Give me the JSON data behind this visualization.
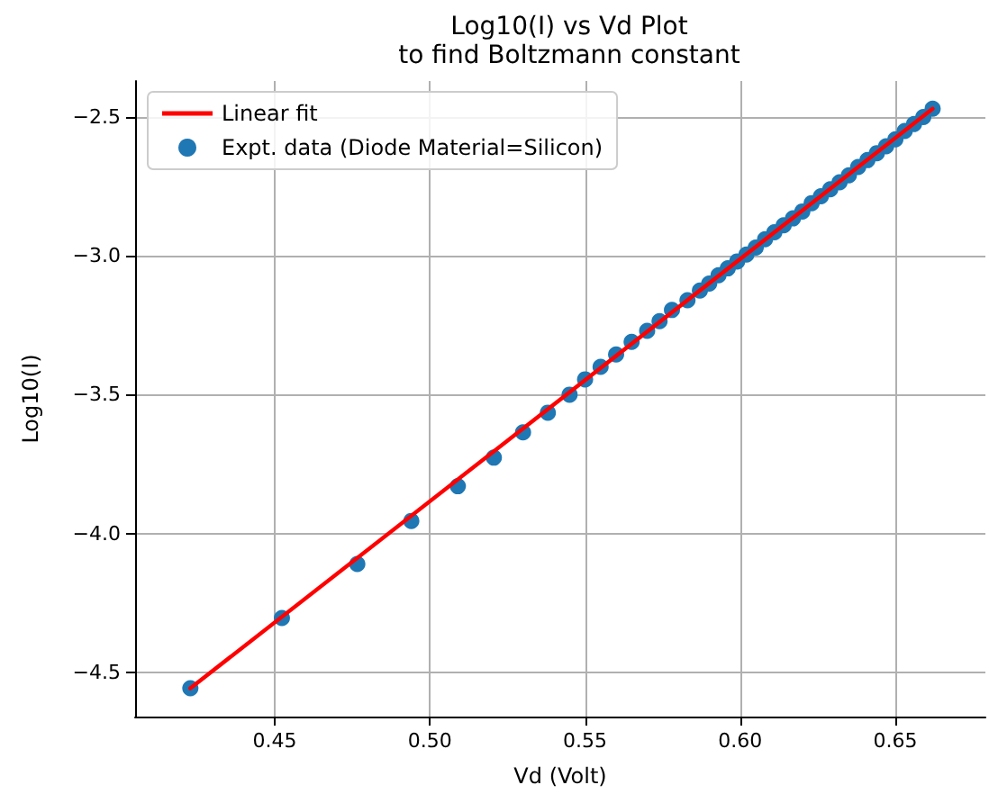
{
  "chart_data": {
    "type": "scatter",
    "title": "Log10(I) vs Vd Plot",
    "subtitle": "to find Boltzmann constant",
    "xlabel": "Vd (Volt)",
    "ylabel": "Log10(I)",
    "x": [
      0.4228,
      0.4523,
      0.4766,
      0.494,
      0.509,
      0.5206,
      0.53,
      0.538,
      0.545,
      0.55,
      0.555,
      0.56,
      0.565,
      0.57,
      0.574,
      0.578,
      0.583,
      0.587,
      0.59,
      0.593,
      0.596,
      0.599,
      0.602,
      0.605,
      0.608,
      0.611,
      0.614,
      0.617,
      0.62,
      0.623,
      0.626,
      0.629,
      0.632,
      0.635,
      0.638,
      0.641,
      0.644,
      0.647,
      0.65,
      0.653,
      0.656,
      0.659,
      0.662
    ],
    "series": [
      {
        "name": "Linear fit",
        "type": "line",
        "color": "#ff0000",
        "marker": "none",
        "x": [
          0.4228,
          0.662
        ],
        "values": [
          -4.558,
          -2.47
        ]
      },
      {
        "name": "Expt. data (Diode Material=Silicon)",
        "color": "#1f77b4",
        "marker": "circle",
        "values": [
          -4.558,
          -4.305,
          -4.11,
          -3.955,
          -3.83,
          -3.727,
          -3.636,
          -3.565,
          -3.5,
          -3.445,
          -3.4,
          -3.355,
          -3.31,
          -3.27,
          -3.235,
          -3.195,
          -3.16,
          -3.125,
          -3.1,
          -3.07,
          -3.045,
          -3.02,
          -2.995,
          -2.97,
          -2.94,
          -2.915,
          -2.89,
          -2.865,
          -2.84,
          -2.81,
          -2.785,
          -2.76,
          -2.735,
          -2.71,
          -2.68,
          -2.655,
          -2.63,
          -2.605,
          -2.58,
          -2.55,
          -2.525,
          -2.5,
          -2.47
        ]
      }
    ],
    "xlim": [
      0.405,
      0.679
    ],
    "xticks": [
      {
        "value": 0.45,
        "label": "0.45"
      },
      {
        "value": 0.5,
        "label": "0.50"
      },
      {
        "value": 0.55,
        "label": "0.55"
      },
      {
        "value": 0.6,
        "label": "0.60"
      },
      {
        "value": 0.65,
        "label": "0.65"
      }
    ],
    "ylim": [
      -4.66,
      -2.37
    ],
    "yticks": [
      {
        "value": -4.5,
        "label": "−4.5"
      },
      {
        "value": -4.0,
        "label": "−4.0"
      },
      {
        "value": -3.5,
        "label": "−3.5"
      },
      {
        "value": -3.0,
        "label": "−3.0"
      },
      {
        "value": -2.5,
        "label": "−2.5"
      }
    ],
    "grid": true,
    "legend": "top left"
  }
}
